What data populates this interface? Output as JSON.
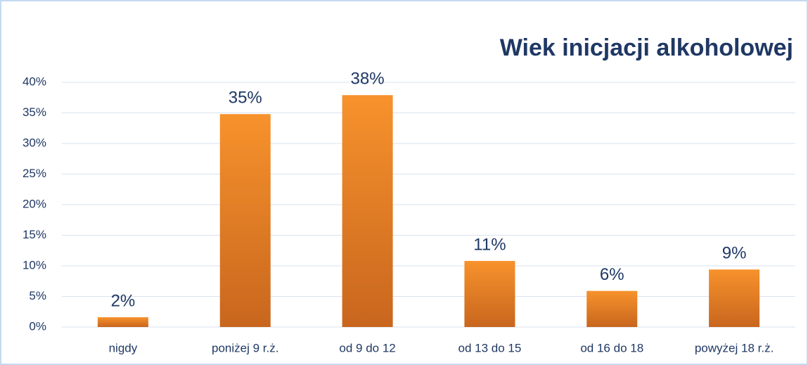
{
  "chart_data": {
    "type": "bar",
    "title": "Wiek inicjacji alkoholowej",
    "categories": [
      "nigdy",
      "poniżej 9 r.ż.",
      "od 9 do 12",
      "od 13 do 15",
      "od 16 do 18",
      "powyżej 18 r.ż."
    ],
    "values": [
      1.6,
      34.8,
      37.9,
      10.8,
      5.9,
      9.4
    ],
    "value_labels": [
      "2%",
      "35%",
      "38%",
      "11%",
      "6%",
      "9%"
    ],
    "color": "#f7922c",
    "ylim": [
      0,
      40
    ],
    "yticks": [
      {
        "value": 0,
        "label": "0%"
      },
      {
        "value": 5,
        "label": "5%"
      },
      {
        "value": 10,
        "label": "10%"
      },
      {
        "value": 15,
        "label": "15%"
      },
      {
        "value": 20,
        "label": "20%"
      },
      {
        "value": 25,
        "label": "25%"
      },
      {
        "value": 30,
        "label": "30%"
      },
      {
        "value": 35,
        "label": "35%"
      },
      {
        "value": 40,
        "label": "40%"
      }
    ],
    "grid": true
  }
}
